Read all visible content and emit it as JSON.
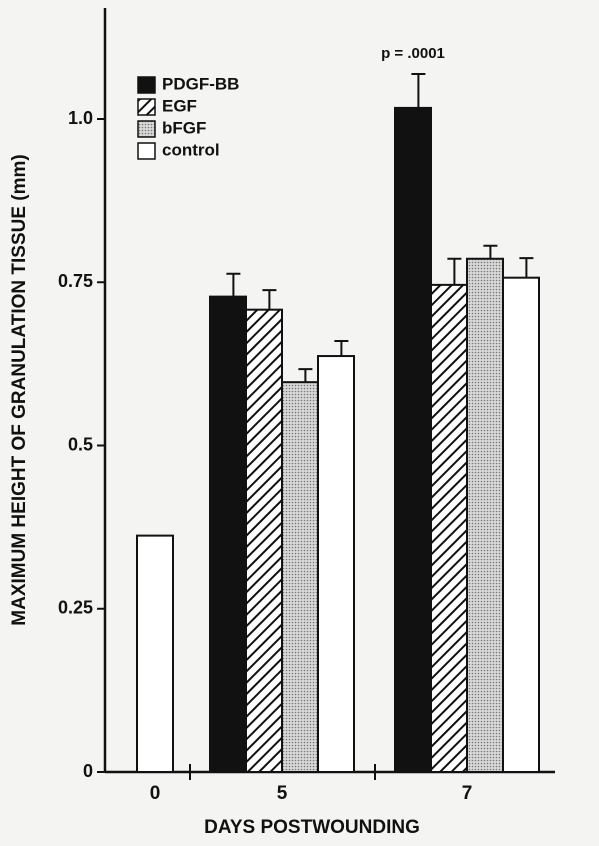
{
  "chart_data": {
    "type": "bar",
    "y_label": "MAXIMUM HEIGHT OF GRANULATION TISSUE (mm)",
    "x_label": "DAYS POSTWOUNDING",
    "categories": [
      "0",
      "5",
      "7"
    ],
    "series": [
      {
        "name": "PDGF-BB",
        "color": "#111111",
        "fill": "solid",
        "values": [
          null,
          0.728,
          1.017
        ],
        "errors": [
          null,
          0.035,
          0.052
        ]
      },
      {
        "name": "EGF",
        "color": "#111111",
        "fill": "hatch",
        "values": [
          null,
          0.708,
          0.746
        ],
        "errors": [
          null,
          0.03,
          0.04
        ]
      },
      {
        "name": "bFGF",
        "color": "#9a9a9a",
        "fill": "dots",
        "values": [
          null,
          0.597,
          0.786
        ],
        "errors": [
          null,
          0.02,
          0.02
        ]
      },
      {
        "name": "control",
        "color": "#ffffff",
        "fill": "solid",
        "values": [
          0.362,
          0.637,
          0.757
        ],
        "errors": [
          null,
          0.023,
          0.03
        ]
      }
    ],
    "annotations": [
      {
        "text": "p = .0001",
        "category": 2,
        "series": 0
      }
    ],
    "ylim": [
      0,
      1.17
    ],
    "yticks": [
      0,
      0.25,
      0.5,
      0.75,
      {
        "value": 1,
        "label": "1.0"
      }
    ],
    "legend": "upper-left"
  }
}
